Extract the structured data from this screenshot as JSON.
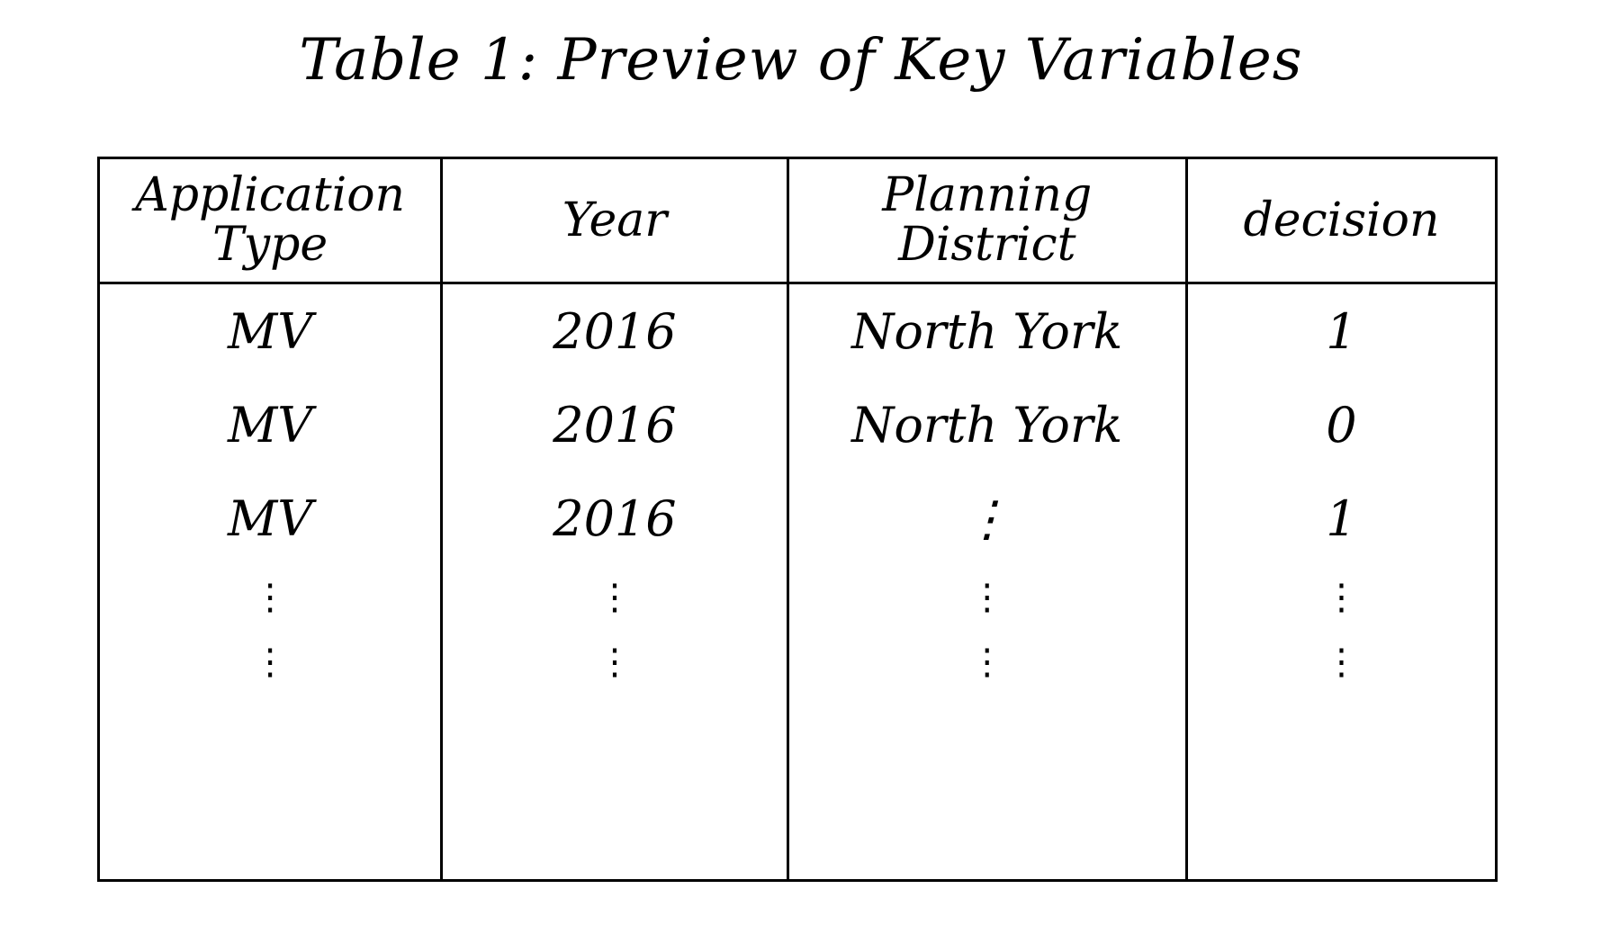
{
  "title": "Table 1: Preview of Key Variables",
  "table": {
    "headers": [
      "Application Type",
      "Year",
      "Planning District",
      "decision"
    ],
    "rows": [
      [
        "MV",
        "2016",
        "North York",
        "1"
      ],
      [
        "MV",
        "2016",
        "North York",
        "0"
      ],
      [
        "MV",
        "2016",
        "⋮",
        "1"
      ]
    ],
    "ellipsis": "⋮"
  }
}
